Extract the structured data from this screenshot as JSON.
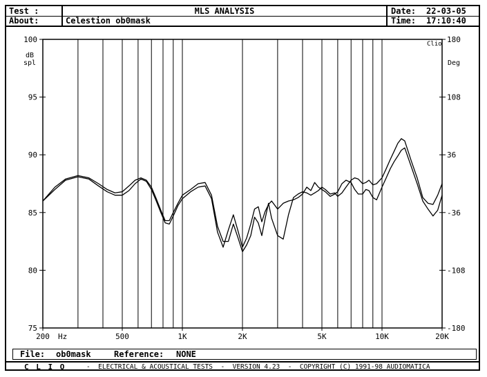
{
  "header": {
    "test_label": "Test :",
    "title": "MLS ANALYSIS",
    "about_label": "About:",
    "about_value": "Celestion ob0mask",
    "date_label": "Date:",
    "date_value": "22-03-05",
    "time_label": "Time:",
    "time_value": "17:10:40"
  },
  "footer": {
    "file_label": "File:",
    "file_value": "ob0mask",
    "reference_label": "Reference:",
    "reference_value": "NONE",
    "brand": "C L I O",
    "info": "-  ELECTRICAL & ACOUSTICAL TESTS  -  VERSION 4.23  -  COPYRIGHT (C) 1991-98 AUDIOMATICA"
  },
  "chart_data": {
    "type": "line",
    "logo": "Clio",
    "x_scale": "log",
    "xlim": [
      200,
      20000
    ],
    "xunit": "Hz",
    "x_tick_labels": [
      {
        "value": 200,
        "label": "200"
      },
      {
        "value": 500,
        "label": "500"
      },
      {
        "value": 1000,
        "label": "1K"
      },
      {
        "value": 2000,
        "label": "2K"
      },
      {
        "value": 5000,
        "label": "5K"
      },
      {
        "value": 10000,
        "label": "10K"
      },
      {
        "value": 20000,
        "label": "20K"
      }
    ],
    "x_gridlines": [
      300,
      400,
      500,
      600,
      700,
      800,
      900,
      1000,
      2000,
      3000,
      4000,
      5000,
      6000,
      7000,
      8000,
      9000,
      10000
    ],
    "ylabel_left": [
      "dB",
      "spl"
    ],
    "ylim_left": [
      75,
      100
    ],
    "y_ticks_left": [
      75,
      80,
      85,
      90,
      95,
      100
    ],
    "ylabel_right": "Deg",
    "ylim_right": [
      -180,
      180
    ],
    "y_ticks_right": [
      -180,
      -108,
      -36,
      36,
      108,
      180
    ],
    "grid": true,
    "series": [
      {
        "x": [
          200,
          230,
          260,
          300,
          340,
          380,
          420,
          460,
          500,
          540,
          580,
          620,
          660,
          700,
          740,
          780,
          820,
          860,
          900,
          950,
          1000,
          1100,
          1200,
          1300,
          1400,
          1500,
          1600,
          1700,
          1800,
          1900,
          2000,
          2100,
          2200,
          2300,
          2400,
          2500,
          2600,
          2700,
          2800,
          3000,
          3200,
          3400,
          3600,
          3800,
          4000,
          4200,
          4400,
          4600,
          4800,
          5000,
          5200,
          5500,
          5800,
          6000,
          6300,
          6600,
          7000,
          7300,
          7600,
          8000,
          8300,
          8600,
          9000,
          9400,
          10000,
          10500,
          11000,
          11500,
          12000,
          12500,
          13000,
          14000,
          15000,
          16000,
          17000,
          18000,
          19000,
          20000
        ],
        "values": [
          86.0,
          87.2,
          87.9,
          88.2,
          88.0,
          87.5,
          87.0,
          86.7,
          86.8,
          87.3,
          87.8,
          88.0,
          87.8,
          87.2,
          86.2,
          85.2,
          84.3,
          84.3,
          85.0,
          85.8,
          86.5,
          87.0,
          87.5,
          87.6,
          86.5,
          83.8,
          82.5,
          82.5,
          84.0,
          82.8,
          81.6,
          82.2,
          83.0,
          84.6,
          84.1,
          83.0,
          84.5,
          85.8,
          84.5,
          83.0,
          82.7,
          84.8,
          86.3,
          86.6,
          86.8,
          86.7,
          86.5,
          86.7,
          86.9,
          87.2,
          87.0,
          86.6,
          86.7,
          86.4,
          86.7,
          87.2,
          87.8,
          88.0,
          87.9,
          87.5,
          87.6,
          87.8,
          87.4,
          87.5,
          88.0,
          88.8,
          89.6,
          90.3,
          91.0,
          91.4,
          91.2,
          89.5,
          88.0,
          86.3,
          85.8,
          85.7,
          86.5,
          87.5
        ]
      },
      {
        "x": [
          200,
          230,
          260,
          300,
          340,
          380,
          420,
          460,
          500,
          540,
          580,
          620,
          660,
          700,
          740,
          780,
          820,
          860,
          900,
          950,
          1000,
          1100,
          1200,
          1300,
          1400,
          1500,
          1600,
          1700,
          1800,
          1900,
          2000,
          2100,
          2200,
          2300,
          2400,
          2500,
          2600,
          2700,
          2800,
          3000,
          3200,
          3400,
          3600,
          3800,
          4000,
          4200,
          4400,
          4600,
          4800,
          5000,
          5200,
          5500,
          5800,
          6000,
          6300,
          6600,
          7000,
          7300,
          7600,
          8000,
          8300,
          8600,
          9000,
          9400,
          10000,
          10500,
          11000,
          11500,
          12000,
          12500,
          13000,
          14000,
          15000,
          16000,
          17000,
          18000,
          19000,
          20000
        ],
        "values": [
          86.0,
          87.0,
          87.8,
          88.1,
          87.9,
          87.3,
          86.8,
          86.5,
          86.5,
          86.9,
          87.5,
          87.9,
          87.7,
          87.0,
          86.0,
          85.0,
          84.1,
          84.0,
          84.7,
          85.6,
          86.2,
          86.8,
          87.2,
          87.3,
          86.2,
          83.3,
          82.0,
          83.5,
          84.8,
          83.4,
          82.0,
          82.8,
          84.0,
          85.3,
          85.5,
          84.2,
          85.1,
          85.7,
          86.0,
          85.3,
          85.8,
          86.0,
          86.1,
          86.3,
          86.6,
          87.2,
          86.9,
          87.6,
          87.2,
          87.0,
          86.8,
          86.4,
          86.6,
          86.8,
          87.5,
          87.8,
          87.6,
          87.0,
          86.6,
          86.6,
          87.0,
          86.9,
          86.3,
          86.1,
          87.2,
          88.0,
          88.8,
          89.4,
          89.9,
          90.4,
          90.6,
          89.0,
          87.5,
          86.0,
          85.3,
          84.7,
          85.2,
          86.5
        ]
      }
    ]
  }
}
